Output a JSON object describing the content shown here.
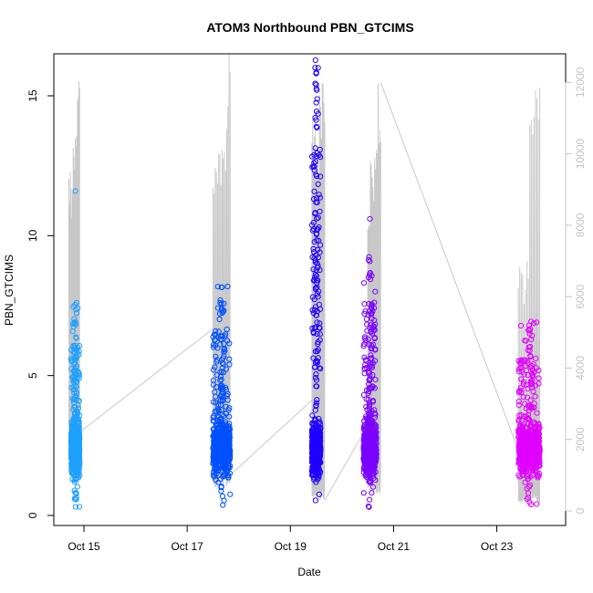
{
  "chart_data": {
    "type": "scatter",
    "title": "ATOM3 Northbound PBN_GTCIMS",
    "xlabel": "Date",
    "ylabel": "PBN_GTCIMS",
    "x_axis": {
      "type": "date",
      "ticks": [
        "Oct 15",
        "Oct 17",
        "Oct 19",
        "Oct 21",
        "Oct 23"
      ],
      "range": [
        "2022-10-14 10:00",
        "2022-10-24 08:00"
      ]
    },
    "y_axis_left": {
      "range": [
        0,
        16.5
      ],
      "ticks": [
        0,
        5,
        10,
        15
      ]
    },
    "y_axis_right": {
      "range": [
        0,
        12800
      ],
      "ticks": [
        0,
        2000,
        4000,
        6000,
        8000,
        10000,
        12000
      ],
      "color": "#c4c4c4"
    },
    "grid": false,
    "marker": "open-circle",
    "series": [
      {
        "segment": 1,
        "x_start": "2022-10-14 18:00",
        "x_end": "2022-10-14 22:00",
        "color": "#1ea0ff",
        "y_low": 0.25,
        "y_high": 7.7,
        "y_outlier": 11.6
      },
      {
        "segment": 2,
        "x_start": "2022-10-17 12:00",
        "x_end": "2022-10-17 20:00",
        "color": "#0050ff",
        "y_low": 0.35,
        "y_high": 8.3,
        "y_outlier": 7.4
      },
      {
        "segment": 3,
        "x_start": "2022-10-19 10:00",
        "x_end": "2022-10-19 14:00",
        "color": "#2000ff",
        "y_low": 0.5,
        "y_high": 16.3,
        "y_outlier": 15.8
      },
      {
        "segment": 4,
        "x_start": "2022-10-20 10:00",
        "x_end": "2022-10-20 16:00",
        "color": "#7a00ff",
        "y_low": 0.3,
        "y_high": 9.4,
        "y_outlier": 10.6
      },
      {
        "segment": 5,
        "x_start": "2022-10-23 10:00",
        "x_end": "2022-10-23 20:00",
        "color": "#e000ff",
        "y_low": 0.3,
        "y_high": 7.0,
        "y_outlier": 6.8
      }
    ],
    "secondary_line": {
      "color": "#c8c8c8",
      "axis": "right",
      "bursts": [
        {
          "x_start": "2022-10-14 17:00",
          "x_end": "2022-10-14 22:00",
          "y_base": 2000,
          "peaks": [
            9800,
            9200,
            10200,
            11500,
            12200
          ]
        },
        {
          "x_start": "2022-10-17 12:00",
          "x_end": "2022-10-17 20:00",
          "y_base": 1000,
          "peaks": [
            9500,
            9700,
            10200,
            10500,
            10600,
            11200,
            12300,
            12800
          ]
        },
        {
          "x_start": "2022-10-19 10:00",
          "x_end": "2022-10-19 16:00",
          "y_base": 500,
          "peaks": [
            11500,
            11200,
            10500,
            11800,
            12400
          ]
        },
        {
          "x_start": "2022-10-20 12:00",
          "x_end": "2022-10-20 18:00",
          "y_base": 800,
          "peaks": [
            9200,
            9800,
            10200,
            11000,
            12000
          ]
        },
        {
          "x_start": "2022-10-23 10:00",
          "x_end": "2022-10-23 20:00",
          "y_base": 400,
          "peaks": [
            7000,
            6800,
            7200,
            11700,
            12100,
            12300
          ]
        }
      ],
      "connections": [
        {
          "x_start": "2022-10-14 22:00",
          "y_start": 2200,
          "x_end": "2022-10-17 12:00",
          "y_end": 5100
        },
        {
          "x_start": "2022-10-17 20:00",
          "y_start": 1000,
          "x_end": "2022-10-19 10:00",
          "y_end": 3100
        },
        {
          "x_start": "2022-10-19 16:00",
          "y_start": 300,
          "x_end": "2022-10-20 12:00",
          "y_end": 2400
        },
        {
          "x_start": "2022-10-20 18:00",
          "y_start": 12000,
          "x_end": "2022-10-23 10:00",
          "y_end": 1700
        }
      ]
    }
  }
}
